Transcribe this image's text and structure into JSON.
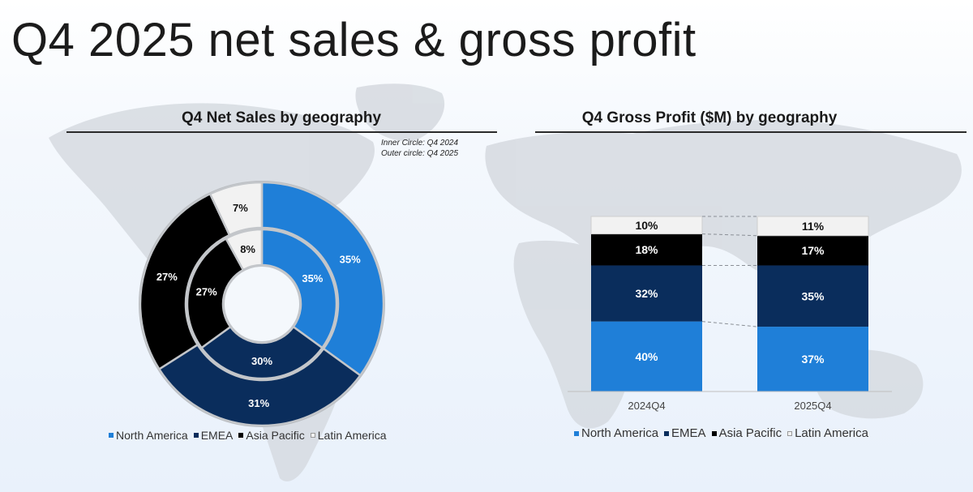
{
  "slide": {
    "title": "Q4 2025 net sales & gross profit"
  },
  "colors": {
    "north_america": "#1f7fd8",
    "emea": "#0a2d5c",
    "asia_pacific": "#000000",
    "latin_america": "#f2f2f2"
  },
  "chart_data": [
    {
      "type": "pie",
      "variant": "double-donut",
      "title": "Q4 Net Sales by geography",
      "notes": [
        "Inner Circle: Q4 2024",
        "Outer circle: Q4 2025"
      ],
      "categories": [
        "North America",
        "EMEA",
        "Asia Pacific",
        "Latin America"
      ],
      "series": [
        {
          "name": "Q4 2024",
          "ring": "inner",
          "values": [
            35,
            30,
            27,
            8
          ],
          "labels": [
            "35%",
            "30%",
            "27%",
            "8%"
          ]
        },
        {
          "name": "Q4 2025",
          "ring": "outer",
          "values": [
            35,
            31,
            27,
            7
          ],
          "labels": [
            "35%",
            "31%",
            "27%",
            "7%"
          ]
        }
      ],
      "legend": {
        "position": "bottom",
        "entries": [
          "North America",
          "EMEA",
          "Asia Pacific",
          "Latin America"
        ]
      }
    },
    {
      "type": "bar",
      "stacked": true,
      "percent": true,
      "title": "Q4 Gross Profit ($M) by geography",
      "categories": [
        "2024Q4",
        "2025Q4"
      ],
      "series": [
        {
          "name": "North America",
          "values": [
            40,
            37
          ],
          "labels": [
            "40%",
            "37%"
          ]
        },
        {
          "name": "EMEA",
          "values": [
            32,
            35
          ],
          "labels": [
            "32%",
            "35%"
          ]
        },
        {
          "name": "Asia Pacific",
          "values": [
            18,
            17
          ],
          "labels": [
            "18%",
            "17%"
          ]
        },
        {
          "name": "Latin America",
          "values": [
            10,
            11
          ],
          "labels": [
            "10%",
            "11%"
          ]
        }
      ],
      "ylim": [
        0,
        100
      ],
      "grid": false,
      "series_lines": true,
      "legend": {
        "position": "bottom",
        "entries": [
          "North America",
          "EMEA",
          "Asia Pacific",
          "Latin America"
        ]
      }
    }
  ]
}
